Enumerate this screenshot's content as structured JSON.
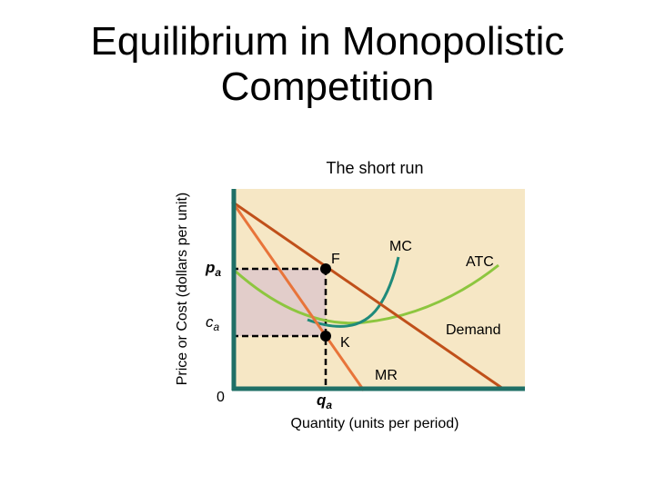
{
  "header": {
    "title_lines": [
      "Equilibrium in Monopolistic",
      "Competition"
    ]
  },
  "diagram": {
    "subtitle": "The short run",
    "y_axis_label": "Price or Cost (dollars per unit)",
    "x_axis_label": "Quantity (units per period)",
    "origin_label": "0",
    "price_label": {
      "main": "p",
      "sub": "a"
    },
    "cost_label": {
      "main": "c",
      "sub": "a"
    },
    "quantity_label": {
      "main": "q",
      "sub": "a"
    },
    "points": [
      "F",
      "K"
    ],
    "curves": {
      "mc": "MC",
      "atc": "ATC",
      "demand": "Demand",
      "mr": "MR"
    }
  }
}
